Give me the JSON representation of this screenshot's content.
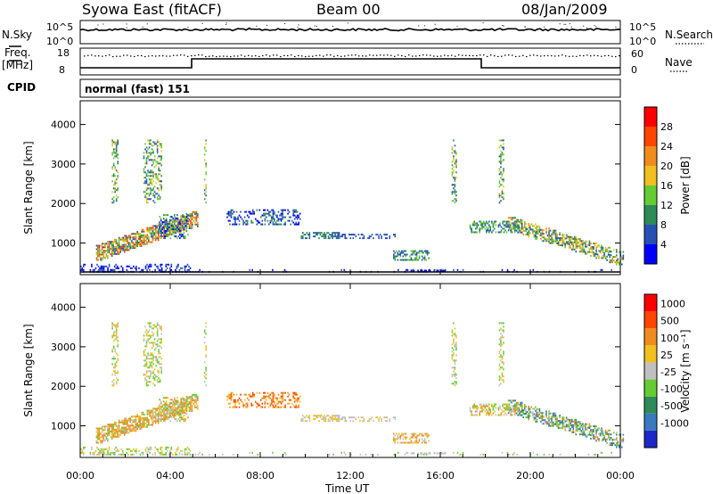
{
  "header": {
    "station": "Syowa East (fitACF)",
    "beam": "Beam 00",
    "date": "08/Jan/2009"
  },
  "sky_panel": {
    "left_label": "N.Sky",
    "left_ticks": [
      "10^5",
      "10^0"
    ],
    "right_label": "N.Search",
    "right_ticks": [
      "10^5",
      "10^0"
    ]
  },
  "freq_panel": {
    "left_label_1": "Freq.",
    "left_label_2": "[MHz]",
    "left_ticks": [
      "18",
      "8"
    ],
    "right_label": "Nave",
    "right_ticks": [
      "60",
      "0"
    ]
  },
  "cpid": {
    "label": "CPID",
    "value": "normal (fast) 151"
  },
  "colors": {
    "power_scale": [
      "#0000ff",
      "#2850b4",
      "#2e8b57",
      "#66cc33",
      "#f0c020",
      "#f08c1e",
      "#ff4500",
      "#ff0000"
    ],
    "velocity_scale": [
      "#1e28c8",
      "#3a78c0",
      "#2e8b57",
      "#66cc33",
      "#c0c0c0",
      "#f0c020",
      "#f08c1e",
      "#ff4500",
      "#ff0000"
    ]
  },
  "chart_data": [
    {
      "type": "heatmap",
      "name": "power",
      "xlabel": "",
      "ylabel": "Slant Range [km]",
      "yticks": [
        "1000",
        "2000",
        "3000",
        "4000"
      ],
      "ylim": [
        200,
        4600
      ],
      "colorbar_label": "Power [dB]",
      "colorbar_ticks": [
        "4",
        "8",
        "12",
        "16",
        "20",
        "24",
        "28"
      ]
    },
    {
      "type": "heatmap",
      "name": "velocity",
      "xlabel": "Time UT",
      "ylabel": "Slant Range [km]",
      "yticks": [
        "1000",
        "2000",
        "3000",
        "4000"
      ],
      "ylim": [
        200,
        4600
      ],
      "xticks": [
        "00:00",
        "04:00",
        "08:00",
        "12:00",
        "16:00",
        "20:00",
        "00:00"
      ],
      "xlim_hours": [
        0,
        24
      ],
      "colorbar_label": "Velocity [m s⁻¹]",
      "colorbar_ticks": [
        "1000",
        "500",
        "100",
        "25",
        "-25",
        "-100",
        "-500",
        "-1000"
      ]
    }
  ]
}
